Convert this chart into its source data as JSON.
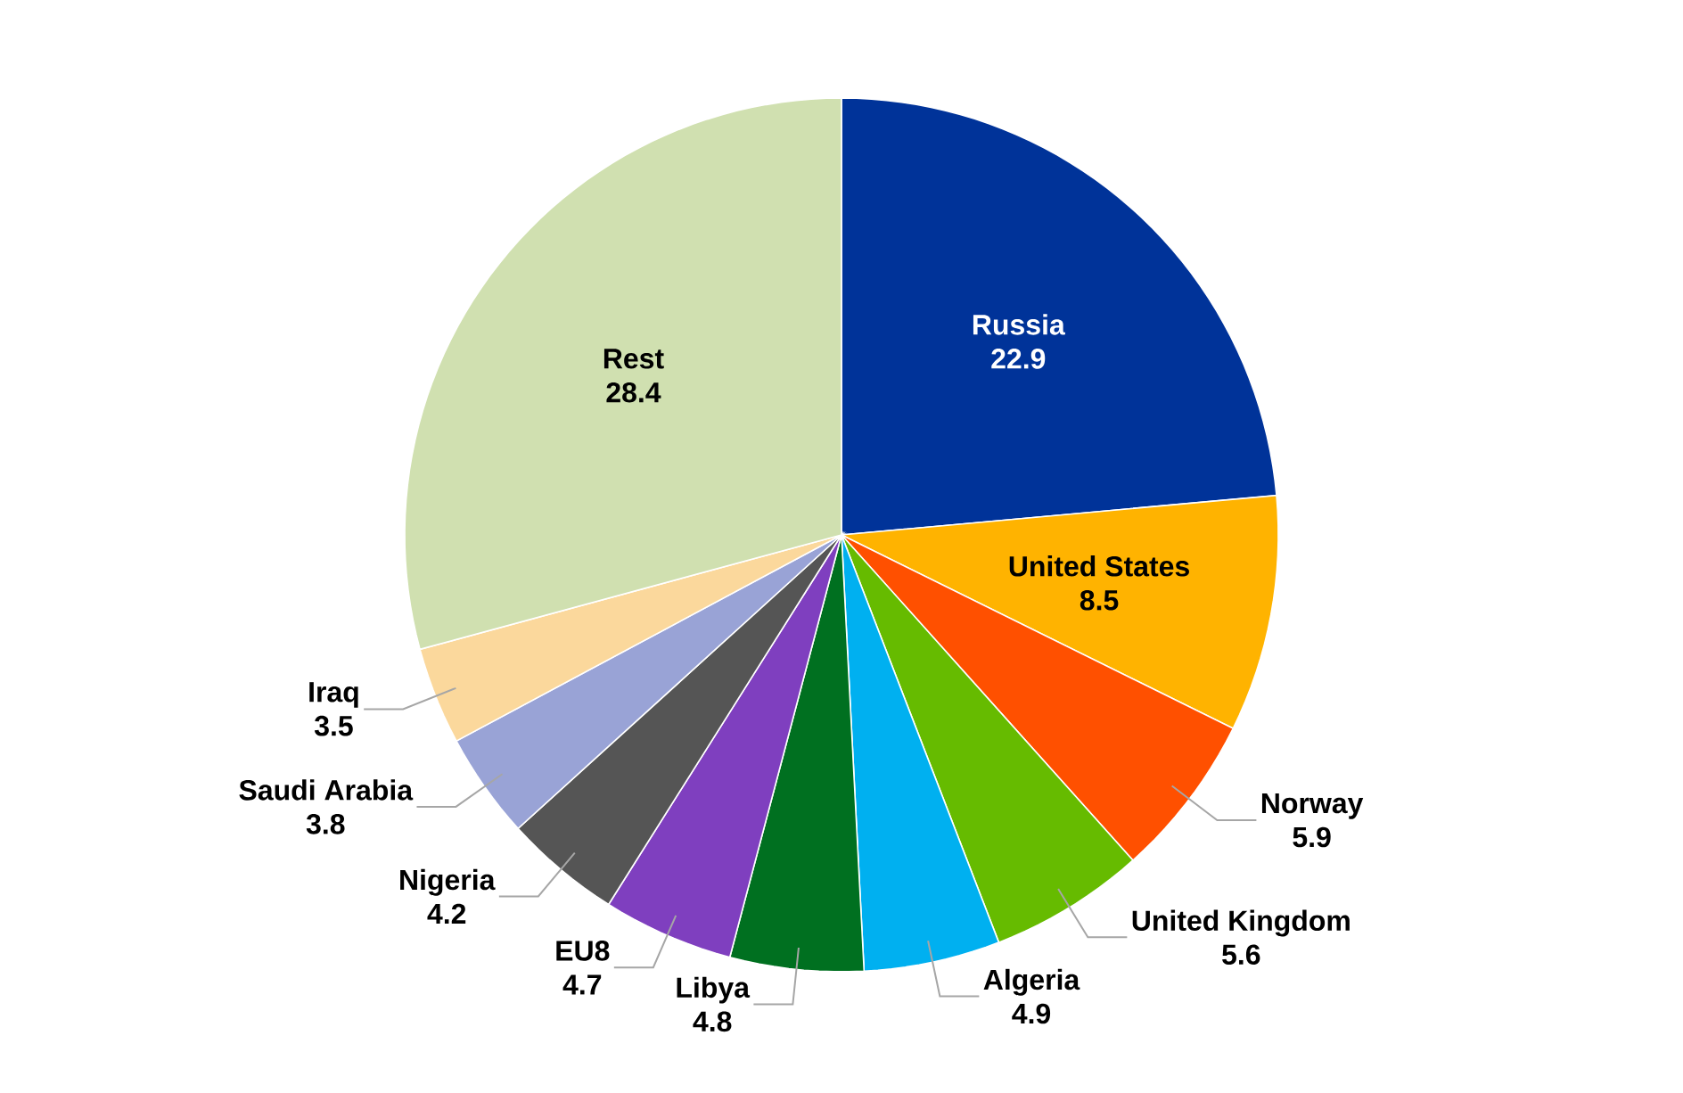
{
  "chart_data": {
    "type": "pie",
    "categories": [
      "Russia",
      "United States",
      "Norway",
      "United Kingdom",
      "Algeria",
      "Libya",
      "EU8",
      "Nigeria",
      "Saudi Arabia",
      "Iraq",
      "Rest"
    ],
    "values": [
      22.9,
      8.5,
      5.9,
      5.6,
      4.9,
      4.8,
      4.7,
      4.2,
      3.8,
      3.5,
      28.4
    ],
    "colors": [
      "#003399",
      "#ffb300",
      "#ff5000",
      "#66bb00",
      "#00b0f0",
      "#007020",
      "#7f3fbf",
      "#555555",
      "#99a3d6",
      "#fbd89c",
      "#d0e0b0"
    ],
    "data_labels": true
  }
}
